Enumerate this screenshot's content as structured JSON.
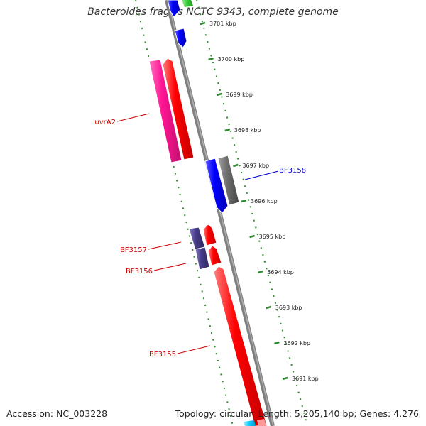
{
  "title": "Bacteroides fragilis NCTC 9343, complete genome",
  "footer": {
    "accession": "Accession: NC_003228",
    "summary": "Topology: circular; Length: 5,205,140 bp; Genes: 4,276"
  },
  "ticks": [
    "3701 kbp",
    "3700 kbp",
    "3699 kbp",
    "3698 kbp",
    "3697 kbp",
    "3696 kbp",
    "3695 kbp",
    "3694 kbp",
    "3693 kbp",
    "3692 kbp",
    "3691 kbp"
  ],
  "gene_labels": {
    "uvrA2": "uvrA2",
    "BF3158": "BF3158",
    "BF3157": "BF3157",
    "BF3156": "BF3156",
    "BF3155": "BF3155"
  },
  "colors": {
    "backbone": "#808080",
    "dotted_track": "#2e8b2e",
    "forward_gene": "#ff0000",
    "reverse_gene": "#0000ff",
    "uvrA2_gene": "#ff1493",
    "grey_gene": "#666666",
    "purple_gene": "#483d8b",
    "green_gene": "#33cc33",
    "cyan_gene": "#00ccff",
    "label_red": "#cc0000",
    "label_blue": "#0000cc"
  }
}
